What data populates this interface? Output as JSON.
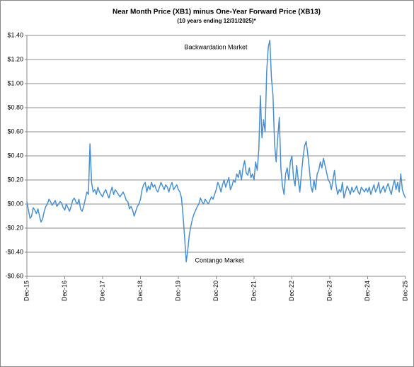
{
  "chart_data": {
    "type": "line",
    "title": "Near Month Price (XB1) minus One-Year Forward Price (XB13)",
    "subtitle": "(10 years ending  12/31/2025)*",
    "annotations": [
      "Backwardation Market",
      "Contango Market"
    ],
    "categories": [
      "Dec-15",
      null,
      null,
      null,
      null,
      null,
      null,
      null,
      null,
      null,
      null,
      null,
      null,
      null,
      null,
      null,
      null,
      null,
      null,
      null,
      null,
      null,
      null,
      null,
      "Dec-16",
      null,
      null,
      null,
      null,
      null,
      null,
      null,
      null,
      null,
      null,
      null,
      null,
      null,
      null,
      null,
      null,
      null,
      null,
      null,
      null,
      null,
      null,
      null,
      "Dec-17",
      null,
      null,
      null,
      null,
      null,
      null,
      null,
      null,
      null,
      null,
      null,
      null,
      null,
      null,
      null,
      null,
      null,
      null,
      null,
      null,
      null,
      null,
      null,
      "Dec-18",
      null,
      null,
      null,
      null,
      null,
      null,
      null,
      null,
      null,
      null,
      null,
      null,
      null,
      null,
      null,
      null,
      null,
      null,
      null,
      null,
      null,
      null,
      null,
      "Dec-19",
      null,
      null,
      null,
      null,
      null,
      null,
      null,
      null,
      null,
      null,
      null,
      null,
      null,
      null,
      null,
      null,
      null,
      null,
      null,
      null,
      null,
      null,
      null,
      "Dec-20",
      null,
      null,
      null,
      null,
      null,
      null,
      null,
      null,
      null,
      null,
      null,
      null,
      null,
      null,
      null,
      null,
      null,
      null,
      null,
      null,
      null,
      null,
      null,
      "Dec-21",
      null,
      null,
      null,
      null,
      null,
      null,
      null,
      null,
      null,
      null,
      null,
      null,
      null,
      null,
      null,
      null,
      null,
      null,
      null,
      null,
      null,
      null,
      null,
      "Dec-22",
      null,
      null,
      null,
      null,
      null,
      null,
      null,
      null,
      null,
      null,
      null,
      null,
      null,
      null,
      null,
      null,
      null,
      null,
      null,
      null,
      null,
      null,
      null,
      "Dec-23",
      null,
      null,
      null,
      null,
      null,
      null,
      null,
      null,
      null,
      null,
      null,
      null,
      null,
      null,
      null,
      null,
      null,
      null,
      null,
      null,
      null,
      null,
      null,
      "Dec-24",
      null,
      null,
      null,
      null,
      null,
      null,
      null,
      null,
      null,
      null,
      null,
      null,
      null,
      null,
      null,
      null,
      null,
      null,
      null,
      null,
      null,
      null,
      null,
      "Dec-25"
    ],
    "values": [
      0.02,
      -0.05,
      -0.12,
      -0.1,
      -0.03,
      -0.05,
      -0.08,
      -0.04,
      -0.1,
      -0.15,
      -0.12,
      -0.06,
      -0.02,
      0.0,
      0.04,
      0.02,
      -0.01,
      0.01,
      0.03,
      -0.02,
      0.0,
      0.02,
      0.01,
      -0.03,
      -0.05,
      0.0,
      -0.03,
      -0.06,
      -0.02,
      0.03,
      0.05,
      0.02,
      0.0,
      0.04,
      -0.04,
      -0.06,
      -0.02,
      0.04,
      0.1,
      0.08,
      0.5,
      0.18,
      0.1,
      0.12,
      0.08,
      0.14,
      0.1,
      0.08,
      0.06,
      0.1,
      0.12,
      0.08,
      0.05,
      0.1,
      0.14,
      0.08,
      0.12,
      0.1,
      0.08,
      0.06,
      0.08,
      0.1,
      0.07,
      0.03,
      0.02,
      -0.04,
      -0.02,
      -0.05,
      -0.1,
      -0.06,
      -0.02,
      0.0,
      0.04,
      0.12,
      0.16,
      0.18,
      0.1,
      0.15,
      0.12,
      0.18,
      0.14,
      0.16,
      0.12,
      0.1,
      0.14,
      0.18,
      0.15,
      0.12,
      0.16,
      0.14,
      0.1,
      0.15,
      0.18,
      0.12,
      0.14,
      0.16,
      0.12,
      0.1,
      0.05,
      -0.1,
      -0.28,
      -0.48,
      -0.38,
      -0.25,
      -0.18,
      -0.12,
      -0.08,
      -0.05,
      -0.02,
      0.0,
      0.05,
      0.02,
      0.0,
      0.04,
      0.02,
      0.0,
      0.03,
      0.06,
      0.04,
      0.08,
      0.12,
      0.18,
      0.15,
      0.1,
      0.16,
      0.2,
      0.14,
      0.18,
      0.22,
      0.12,
      0.15,
      0.2,
      0.18,
      0.25,
      0.22,
      0.28,
      0.2,
      0.3,
      0.36,
      0.26,
      0.24,
      0.3,
      0.22,
      0.25,
      0.2,
      0.35,
      0.28,
      0.45,
      0.9,
      0.55,
      0.7,
      0.6,
      1.1,
      1.3,
      1.36,
      1.05,
      0.9,
      0.5,
      0.35,
      0.55,
      0.72,
      0.3,
      0.15,
      0.08,
      0.25,
      0.3,
      0.2,
      0.35,
      0.4,
      0.22,
      0.15,
      0.32,
      0.2,
      0.1,
      0.25,
      0.38,
      0.48,
      0.52,
      0.42,
      0.3,
      0.15,
      0.1,
      0.2,
      0.12,
      0.25,
      0.28,
      0.35,
      0.3,
      0.38,
      0.32,
      0.26,
      0.2,
      0.18,
      0.12,
      0.2,
      0.28,
      0.15,
      0.08,
      0.12,
      0.1,
      0.18,
      0.05,
      0.1,
      0.15,
      0.12,
      0.08,
      0.14,
      0.1,
      0.12,
      0.15,
      0.1,
      0.08,
      0.14,
      0.12,
      0.1,
      0.13,
      0.1,
      0.14,
      0.08,
      0.12,
      0.16,
      0.1,
      0.13,
      0.18,
      0.09,
      0.12,
      0.15,
      0.1,
      0.14,
      0.17,
      0.12,
      0.08,
      0.15,
      0.2,
      0.12,
      0.18,
      0.1,
      0.25,
      0.12,
      0.08,
      0.05
    ],
    "color": "#4a8fcf",
    "ylim": [
      -0.6,
      1.4
    ],
    "yticks": [
      {
        "value": -0.6,
        "label": "-$0.60"
      },
      {
        "value": -0.4,
        "label": "-$0.40"
      },
      {
        "value": -0.2,
        "label": "-$0.20"
      },
      {
        "value": 0,
        "label": "$0.00"
      },
      {
        "value": 0.2,
        "label": "$0.20"
      },
      {
        "value": 0.4,
        "label": "$0.40"
      },
      {
        "value": 0.6,
        "label": "$0.60"
      },
      {
        "value": 0.8,
        "label": "$0.80"
      },
      {
        "value": 1.0,
        "label": "$1.00"
      },
      {
        "value": 1.2,
        "label": "$1.20"
      },
      {
        "value": 1.4,
        "label": "$1.40"
      }
    ],
    "grid": true
  }
}
